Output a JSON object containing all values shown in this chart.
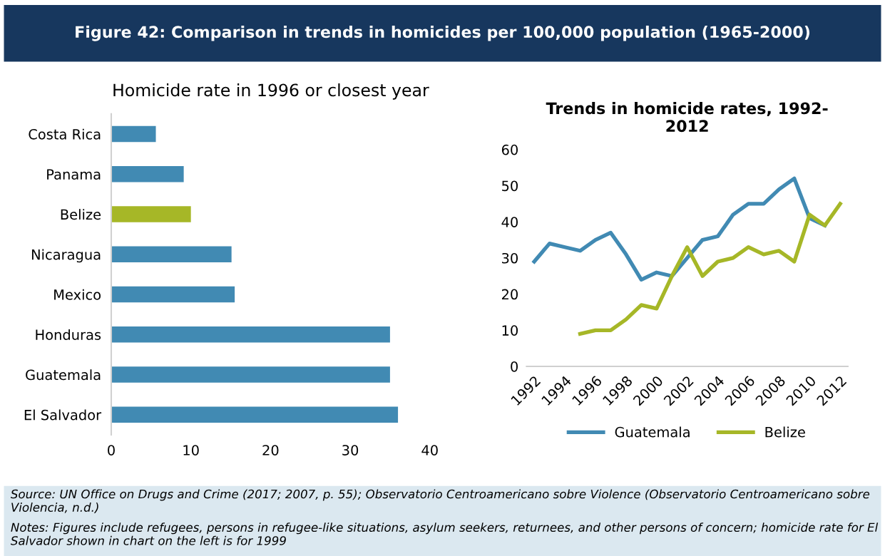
{
  "chart_data": [
    {
      "type": "bar",
      "orientation": "horizontal",
      "title": "Homicide rate in 1996 or closest year",
      "categories": [
        "Costa Rica",
        "Panama",
        "Belize",
        "Nicaragua",
        "Mexico",
        "Honduras",
        "Guatemala",
        "El Salvador"
      ],
      "values": [
        5.6,
        9.1,
        10,
        15.1,
        15.5,
        35,
        35,
        36
      ],
      "colors": [
        "#418ab3",
        "#418ab3",
        "#a6b727",
        "#418ab3",
        "#418ab3",
        "#418ab3",
        "#418ab3",
        "#418ab3"
      ],
      "xlim": [
        0,
        40
      ],
      "xticks": [
        0,
        10,
        20,
        30,
        40
      ],
      "grid": false,
      "annotations": [
        "Figure 42: Comparison in trends in homicides per 100,000 population (1965-2000)",
        "Source: UN Office on Drugs and Crime (2017; 2007, p. 55); Observatorio Centroamericano sobre Violence (Observatorio Centroamericano sobre Violencia, n.d.)",
        "Notes: Figures include refugees, persons in refugee-like situations, asylum seekers, returnees, and other persons of concern; homicide rate for El Salvador shown in chart on the left is for 1999"
      ]
    },
    {
      "type": "line",
      "title": "Trends in homicide rates, 1992-\n2012",
      "x": [
        1992,
        1993,
        1994,
        1995,
        1996,
        1997,
        1998,
        1999,
        2000,
        2001,
        2002,
        2003,
        2004,
        2005,
        2006,
        2007,
        2008,
        2009,
        2010,
        2011,
        2012
      ],
      "series": [
        {
          "name": "Guatemala",
          "color": "#418ab3",
          "values": [
            29,
            34,
            33,
            32,
            35,
            37,
            31,
            24,
            26,
            25,
            30,
            35,
            36,
            42,
            45,
            45,
            49,
            52,
            41,
            39,
            null
          ]
        },
        {
          "name": "Belize",
          "color": "#a6b727",
          "values": [
            null,
            null,
            null,
            9,
            10,
            10,
            13,
            17,
            16,
            25,
            33,
            25,
            29,
            30,
            33,
            31,
            32,
            29,
            42,
            39,
            45
          ]
        }
      ],
      "xlim": [
        1991.5,
        2012.5
      ],
      "xticks": [
        1992,
        1994,
        1996,
        1998,
        2000,
        2002,
        2004,
        2006,
        2008,
        2010,
        2012
      ],
      "ylim": [
        0,
        60
      ],
      "yticks": [
        0,
        10,
        20,
        30,
        40,
        50,
        60
      ],
      "grid": false,
      "legend": "bottom",
      "line_style": "solid",
      "marker": "none"
    }
  ]
}
